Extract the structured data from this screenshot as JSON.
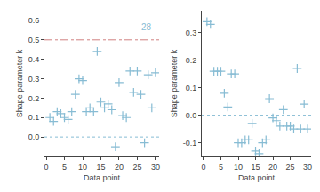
{
  "chart_data": [
    {
      "type": "scatter",
      "x": [
        1,
        2,
        3,
        4,
        5,
        6,
        7,
        8,
        9,
        10,
        11,
        12,
        13,
        14,
        15,
        16,
        17,
        18,
        19,
        20,
        21,
        22,
        23,
        24,
        25,
        26,
        27,
        28,
        29,
        30
      ],
      "values": [
        0.1,
        0.08,
        0.13,
        0.12,
        0.1,
        0.09,
        0.13,
        0.22,
        0.3,
        0.29,
        0.13,
        0.15,
        0.13,
        0.44,
        0.18,
        0.15,
        0.17,
        0.14,
        -0.05,
        0.28,
        0.11,
        0.1,
        0.34,
        0.23,
        0.34,
        0.22,
        -0.03,
        0.32,
        0.15,
        0.33
      ],
      "color": "#87bcd4",
      "marker": "+",
      "xlabel": "Data point",
      "ylabel": "Shape parameter k",
      "xlim": [
        -0.5,
        31
      ],
      "xticks": [
        0,
        5,
        10,
        15,
        20,
        25,
        30
      ],
      "ylim": [
        -0.1,
        0.65
      ],
      "yticks": [
        {
          "value": 0,
          "label": "0.0"
        },
        0.1,
        0.2,
        0.3,
        0.4,
        0.5,
        0.6
      ],
      "grid": false,
      "hlines": [
        {
          "y": 0.5,
          "color": "#d08080",
          "line_style": "dashdot"
        },
        {
          "y": 0,
          "color": "#87bcd4",
          "line_style": "dotted"
        }
      ],
      "annotations": [
        {
          "text": "28",
          "x": 27.5,
          "y": 0.6,
          "color": "#87bcd4"
        }
      ]
    },
    {
      "type": "scatter",
      "x": [
        1,
        2,
        3,
        4,
        5,
        6,
        7,
        8,
        9,
        10,
        11,
        12,
        13,
        14,
        15,
        16,
        17,
        18,
        19,
        20,
        21,
        22,
        23,
        24,
        25,
        26,
        27,
        28,
        29,
        30
      ],
      "values": [
        0.34,
        0.33,
        0.16,
        0.16,
        0.16,
        0.08,
        0.03,
        0.15,
        0.15,
        -0.1,
        -0.1,
        -0.09,
        -0.09,
        -0.03,
        -0.13,
        -0.14,
        -0.1,
        -0.09,
        0.06,
        -0.01,
        -0.02,
        -0.04,
        0.02,
        -0.04,
        -0.04,
        -0.05,
        0.17,
        -0.05,
        0.04,
        -0.05
      ],
      "color": "#87bcd4",
      "marker": "+",
      "xlabel": "Data point",
      "ylabel": "Shape parameter k",
      "xlim": [
        -0.5,
        31
      ],
      "xticks": [
        0,
        5,
        10,
        15,
        20,
        25,
        30
      ],
      "ylim": [
        -0.15,
        0.38
      ],
      "yticks": [
        -0.1,
        {
          "value": 0,
          "label": "0.0"
        },
        0.1,
        0.2,
        0.3
      ],
      "grid": false,
      "hlines": [
        {
          "y": 0,
          "color": "#87bcd4",
          "line_style": "dotted"
        }
      ]
    }
  ]
}
